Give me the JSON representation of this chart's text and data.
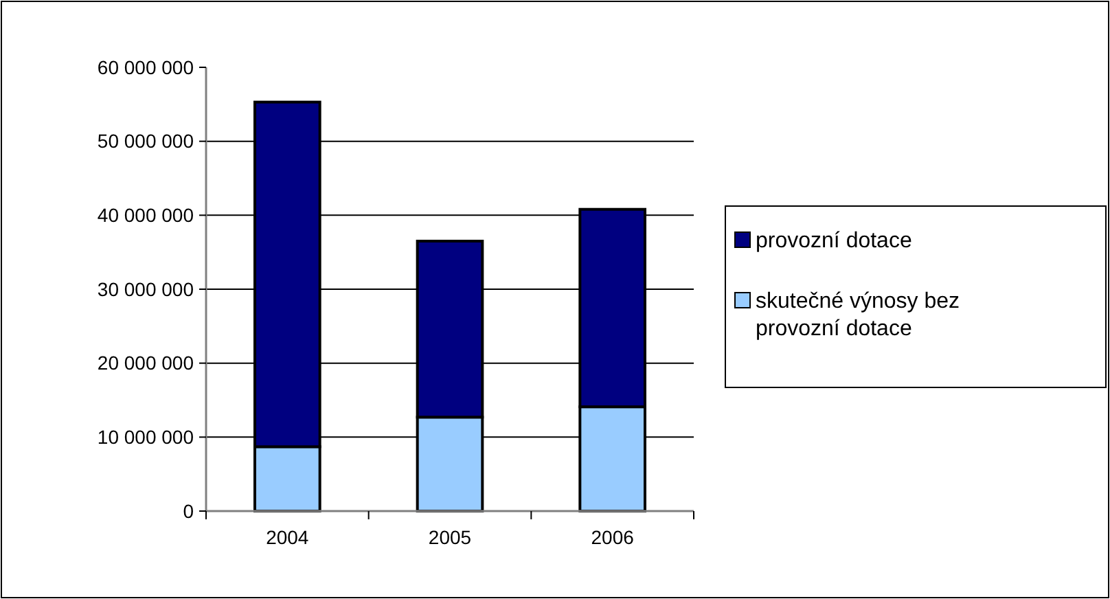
{
  "chart_data": {
    "type": "bar",
    "stacked": true,
    "categories": [
      "2004",
      "2005",
      "2006"
    ],
    "series": [
      {
        "name": "skutečné výnosy bez provozní dotace",
        "color": "#99ccff",
        "values": [
          8700000,
          12700000,
          14100000
        ]
      },
      {
        "name": "provozní dotace",
        "color": "#000080",
        "values": [
          46600000,
          23800000,
          26700000
        ]
      }
    ],
    "ylim": [
      0,
      60000000
    ],
    "yticks": [
      {
        "value": 0,
        "label": "0"
      },
      {
        "value": 10000000,
        "label": "10 000 000"
      },
      {
        "value": 20000000,
        "label": "20 000 000"
      },
      {
        "value": 30000000,
        "label": "30 000 000"
      },
      {
        "value": 40000000,
        "label": "40 000 000"
      },
      {
        "value": 50000000,
        "label": "50 000 000"
      },
      {
        "value": 60000000,
        "label": "60 000 000"
      }
    ],
    "grid": "y",
    "legend": "right"
  }
}
